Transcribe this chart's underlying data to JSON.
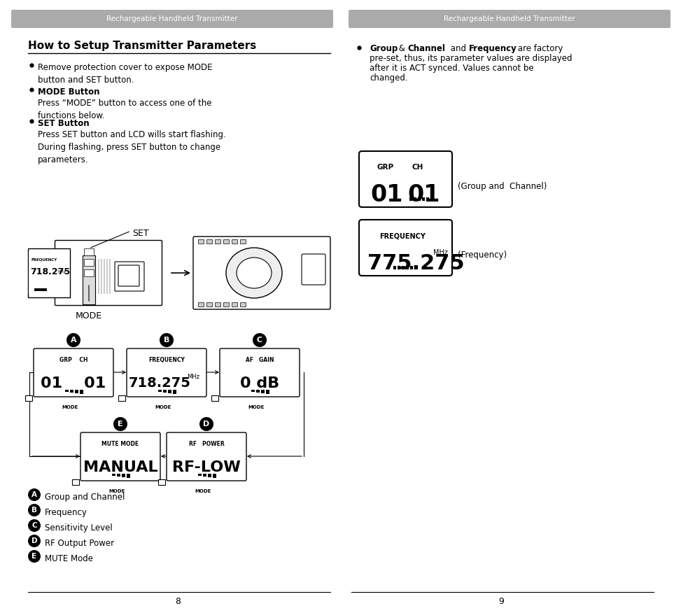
{
  "bg_color": "#ffffff",
  "header_bg": "#aaaaaa",
  "header_text": "Rechargeable Handheld Transmitter",
  "title": "How to Setup Transmitter Parameters",
  "legend_items": [
    {
      "icon": "A",
      "text": "Group and Channel"
    },
    {
      "icon": "B",
      "text": "Frequency"
    },
    {
      "icon": "C",
      "text": "Sensitivity Level"
    },
    {
      "icon": "D",
      "text": "RF Output Power"
    },
    {
      "icon": "E",
      "text": "MUTE Mode"
    }
  ],
  "page_left": "8",
  "page_right": "9"
}
